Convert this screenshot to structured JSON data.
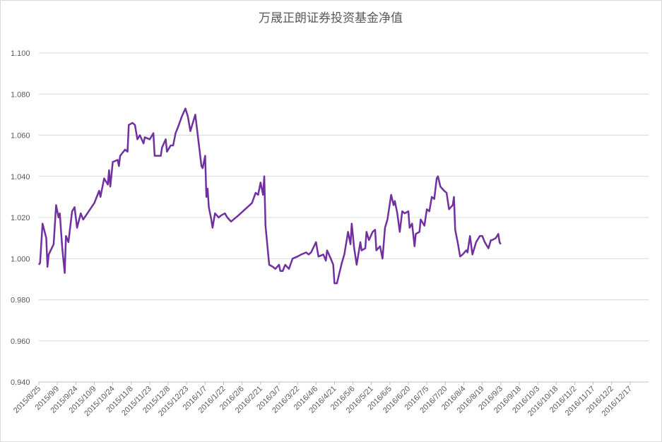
{
  "chart_data": {
    "type": "line",
    "title": "万晟正朗证券投资基金净值",
    "color": "#7030a0",
    "grid": true,
    "xlim": [
      "2015/8/25",
      "2017/1/1"
    ],
    "xticks": [
      "2015/8/25",
      "2015/9/9",
      "2015/9/24",
      "2015/10/9",
      "2015/10/24",
      "2015/11/8",
      "2015/11/23",
      "2015/12/8",
      "2015/12/23",
      "2016/1/7",
      "2016/1/22",
      "2016/2/6",
      "2016/2/21",
      "2016/3/7",
      "2016/3/22",
      "2016/4/6",
      "2016/4/21",
      "2016/5/6",
      "2016/5/21",
      "2016/6/5",
      "2016/6/20",
      "2016/7/5",
      "2016/7/20",
      "2016/8/4",
      "2016/8/19",
      "2016/9/3",
      "2016/9/18",
      "2016/10/3",
      "2016/10/18",
      "2016/11/2",
      "2016/11/17",
      "2016/12/2",
      "2016/12/17"
    ],
    "ylim": [
      0.94,
      1.1
    ],
    "yticks": [
      {
        "value": 0.94,
        "label": "0.940"
      },
      {
        "value": 0.96,
        "label": "0.960"
      },
      {
        "value": 0.98,
        "label": "0.980"
      },
      {
        "value": 1.0,
        "label": "1.000"
      },
      {
        "value": 1.02,
        "label": "1.020"
      },
      {
        "value": 1.04,
        "label": "1.040"
      },
      {
        "value": 1.06,
        "label": "1.060"
      },
      {
        "value": 1.08,
        "label": "1.080"
      },
      {
        "value": 1.1,
        "label": "1.100"
      }
    ],
    "x": [
      "2015/8/25",
      "2015/8/26",
      "2015/8/28",
      "2015/8/31",
      "2015/9/1",
      "2015/9/2",
      "2015/9/6",
      "2015/9/8",
      "2015/9/10",
      "2015/9/11",
      "2015/9/13",
      "2015/9/15",
      "2015/9/16",
      "2015/9/18",
      "2015/9/21",
      "2015/9/23",
      "2015/9/25",
      "2015/9/28",
      "2015/9/30",
      "2015/10/9",
      "2015/10/13",
      "2015/10/14",
      "2015/10/17",
      "2015/10/20",
      "2015/10/21",
      "2015/10/22",
      "2015/10/24",
      "2015/10/28",
      "2015/10/29",
      "2015/10/30",
      "2015/11/3",
      "2015/11/5",
      "2015/11/6",
      "2015/11/9",
      "2015/11/11",
      "2015/11/13",
      "2015/11/15",
      "2015/11/18",
      "2015/11/19",
      "2015/11/23",
      "2015/11/26",
      "2015/11/27",
      "2015/12/2",
      "2015/12/3",
      "2015/12/6",
      "2015/12/7",
      "2015/12/10",
      "2015/12/12",
      "2015/12/14",
      "2015/12/16",
      "2015/12/19",
      "2015/12/22",
      "2015/12/24",
      "2015/12/26",
      "2015/12/30",
      "2016/1/2",
      "2016/1/4",
      "2016/1/5",
      "2016/1/7",
      "2016/1/8",
      "2016/1/9",
      "2016/1/10",
      "2016/1/12",
      "2016/1/13",
      "2016/1/15",
      "2016/1/18",
      "2016/1/20",
      "2016/1/23",
      "2016/1/25",
      "2016/1/28",
      "2016/2/3",
      "2016/2/14",
      "2016/2/17",
      "2016/2/19",
      "2016/2/21",
      "2016/2/23",
      "2016/2/24",
      "2016/2/25",
      "2016/2/28",
      "2016/3/2",
      "2016/3/4",
      "2016/3/7",
      "2016/3/8",
      "2016/3/10",
      "2016/3/12",
      "2016/3/15",
      "2016/3/18",
      "2016/3/22",
      "2016/3/25",
      "2016/3/29",
      "2016/3/31",
      "2016/4/2",
      "2016/4/6",
      "2016/4/8",
      "2016/4/12",
      "2016/4/14",
      "2016/4/15",
      "2016/4/18",
      "2016/4/20",
      "2016/4/21",
      "2016/4/23",
      "2016/4/27",
      "2016/4/29",
      "2016/5/2",
      "2016/5/4",
      "2016/5/5",
      "2016/5/7",
      "2016/5/9",
      "2016/5/12",
      "2016/5/13",
      "2016/5/16",
      "2016/5/17",
      "2016/5/19",
      "2016/5/22",
      "2016/5/24",
      "2016/5/25",
      "2016/5/28",
      "2016/5/30",
      "2016/6/1",
      "2016/6/3",
      "2016/6/6",
      "2016/6/8",
      "2016/6/9",
      "2016/6/11",
      "2016/6/13",
      "2016/6/15",
      "2016/6/17",
      "2016/6/20",
      "2016/6/21",
      "2016/6/23",
      "2016/6/25",
      "2016/6/26",
      "2016/6/29",
      "2016/6/30",
      "2016/7/3",
      "2016/7/5",
      "2016/7/7",
      "2016/7/9",
      "2016/7/11",
      "2016/7/13",
      "2016/7/14",
      "2016/7/16",
      "2016/7/19",
      "2016/7/21",
      "2016/7/23",
      "2016/7/26",
      "2016/7/27",
      "2016/7/28",
      "2016/7/30",
      "2016/8/1",
      "2016/8/3",
      "2016/8/6",
      "2016/8/7",
      "2016/8/9",
      "2016/8/11",
      "2016/8/14",
      "2016/8/17",
      "2016/8/19",
      "2016/8/21",
      "2016/8/24",
      "2016/8/26",
      "2016/8/27",
      "2016/8/30",
      "2016/9/1",
      "2016/9/2",
      "2016/9/3"
    ],
    "values": [
      0.997,
      0.998,
      1.017,
      1.01,
      0.996,
      1.002,
      1.007,
      1.026,
      1.02,
      1.022,
      1.005,
      0.993,
      1.011,
      1.008,
      1.023,
      1.025,
      1.015,
      1.022,
      1.019,
      1.027,
      1.033,
      1.03,
      1.039,
      1.036,
      1.043,
      1.035,
      1.047,
      1.048,
      1.045,
      1.05,
      1.053,
      1.052,
      1.065,
      1.066,
      1.065,
      1.058,
      1.06,
      1.056,
      1.059,
      1.058,
      1.061,
      1.05,
      1.05,
      1.054,
      1.058,
      1.052,
      1.055,
      1.055,
      1.061,
      1.064,
      1.069,
      1.073,
      1.069,
      1.062,
      1.07,
      1.055,
      1.045,
      1.044,
      1.05,
      1.03,
      1.034,
      1.025,
      1.019,
      1.015,
      1.022,
      1.02,
      1.021,
      1.022,
      1.02,
      1.018,
      1.021,
      1.027,
      1.032,
      1.031,
      1.037,
      1.031,
      1.04,
      1.016,
      0.997,
      0.996,
      0.995,
      0.997,
      0.994,
      0.994,
      0.997,
      0.995,
      1.0,
      1.001,
      1.002,
      1.003,
      1.002,
      1.003,
      1.008,
      1.001,
      1.002,
      0.999,
      1.004,
      1.0,
      0.997,
      0.988,
      0.988,
      0.998,
      1.002,
      1.013,
      1.007,
      1.017,
      1.005,
      0.997,
      1.008,
      1.004,
      1.005,
      1.013,
      1.009,
      1.013,
      1.014,
      1.004,
      1.006,
      1.0,
      1.015,
      1.019,
      1.031,
      1.026,
      1.028,
      1.022,
      1.013,
      1.023,
      1.022,
      1.023,
      1.015,
      1.017,
      1.006,
      1.012,
      1.013,
      1.019,
      1.016,
      1.024,
      1.023,
      1.03,
      1.029,
      1.039,
      1.04,
      1.035,
      1.033,
      1.032,
      1.024,
      1.026,
      1.03,
      1.014,
      1.008,
      1.001,
      1.002,
      1.004,
      1.003,
      1.011,
      1.002,
      1.008,
      1.011,
      1.011,
      1.008,
      1.005,
      1.009,
      1.009,
      1.01,
      1.012,
      1.008,
      1.007
    ]
  }
}
